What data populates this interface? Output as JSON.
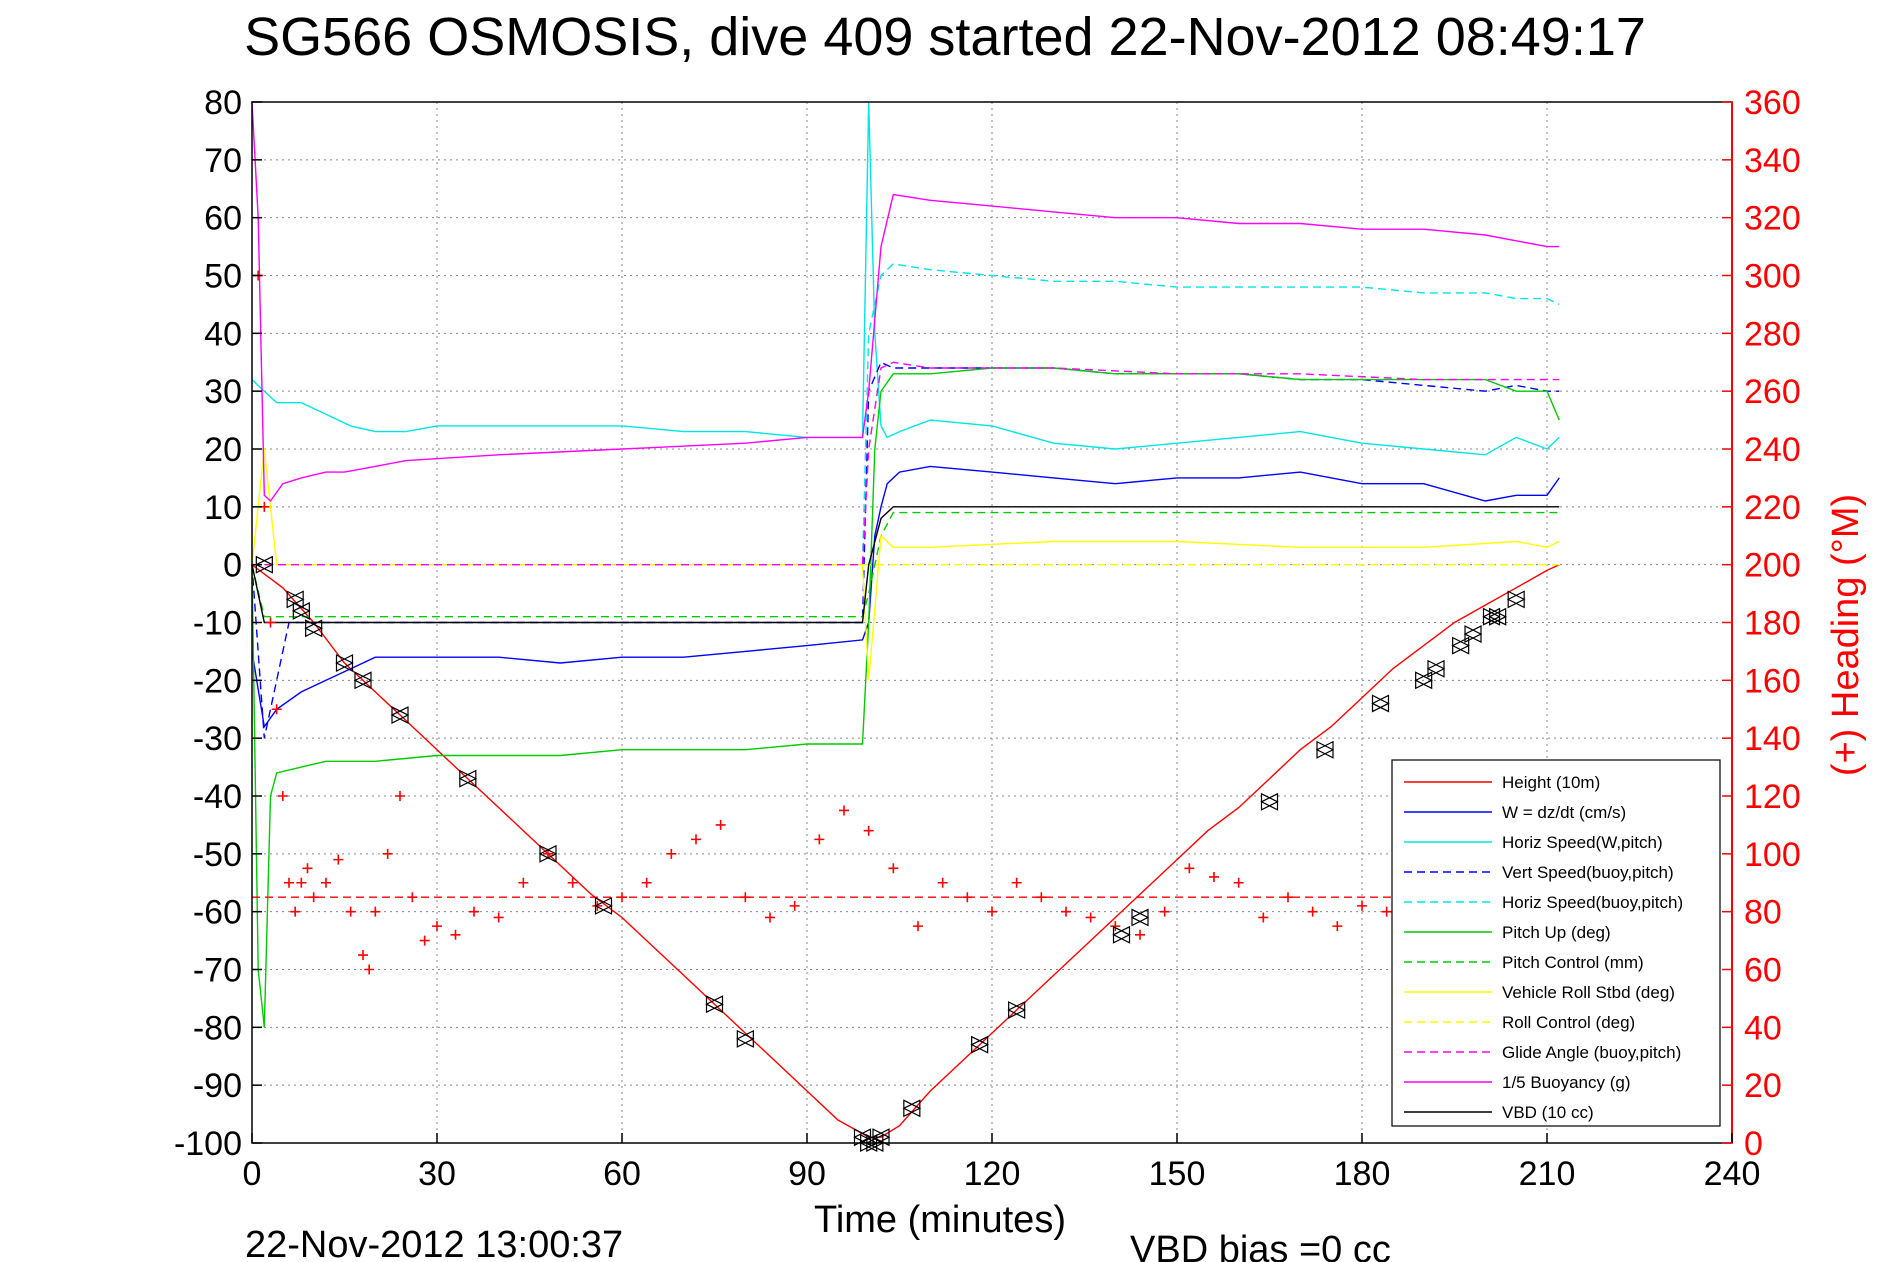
{
  "title": "SG566 OSMOSIS, dive 409 started 22-Nov-2012 08:49:17",
  "footer": {
    "timestamp": "22-Nov-2012 13:00:37",
    "vbd_bias": "VBD bias =0 cc"
  },
  "chart_data": {
    "type": "line",
    "xlabel": "Time (minutes)",
    "ylabel_right": "(+) Heading (°M)",
    "xlim": [
      0,
      240
    ],
    "ylim": [
      -100,
      80
    ],
    "ylim_right": [
      0,
      360
    ],
    "xticks": [
      0,
      30,
      60,
      90,
      120,
      150,
      180,
      210,
      240
    ],
    "yticks": [
      80,
      70,
      60,
      50,
      40,
      30,
      20,
      10,
      0,
      -10,
      -20,
      -30,
      -40,
      -50,
      -60,
      -70,
      -80,
      -90,
      -100
    ],
    "yticks_right": [
      360,
      340,
      320,
      300,
      280,
      260,
      240,
      220,
      200,
      180,
      160,
      140,
      120,
      100,
      80,
      60,
      40,
      20,
      0
    ],
    "grid": true,
    "legend_position": "bottom-right",
    "legend": [
      {
        "label": "Height (10m)",
        "color": "#ff0000",
        "dash": "solid"
      },
      {
        "label": "W = dz/dt (cm/s)",
        "color": "#0000ff",
        "dash": "solid"
      },
      {
        "label": "Horiz Speed(W,pitch)",
        "color": "#00e5e5",
        "dash": "solid"
      },
      {
        "label": "Vert Speed(buoy,pitch)",
        "color": "#0000ff",
        "dash": "dashed"
      },
      {
        "label": "Horiz Speed(buoy,pitch)",
        "color": "#00e5e5",
        "dash": "dashed"
      },
      {
        "label": "Pitch Up (deg)",
        "color": "#00cc00",
        "dash": "solid"
      },
      {
        "label": "Pitch Control (mm)",
        "color": "#00cc00",
        "dash": "dashed"
      },
      {
        "label": "Vehicle Roll Stbd (deg)",
        "color": "#ffff00",
        "dash": "solid"
      },
      {
        "label": "Roll Control (deg)",
        "color": "#ffff00",
        "dash": "dashed"
      },
      {
        "label": "Glide Angle (buoy,pitch)",
        "color": "#ff00ff",
        "dash": "dashed"
      },
      {
        "label": "1/5 Buoyancy (g)",
        "color": "#ff00ff",
        "dash": "solid"
      },
      {
        "label": "VBD (10 cc)",
        "color": "#000000",
        "dash": "solid"
      }
    ],
    "series": [
      {
        "name": "Height (10m)",
        "color": "#ff0000",
        "dash": "solid",
        "x": [
          0,
          5,
          10,
          15,
          20,
          25,
          30,
          35,
          40,
          45,
          50,
          55,
          60,
          65,
          70,
          75,
          80,
          85,
          90,
          95,
          100,
          102,
          105,
          110,
          115,
          120,
          125,
          130,
          135,
          140,
          145,
          150,
          155,
          160,
          165,
          170,
          175,
          180,
          185,
          190,
          195,
          200,
          205,
          210,
          212
        ],
        "y": [
          0,
          -4,
          -10,
          -17,
          -22,
          -27,
          -32,
          -37,
          -42,
          -47,
          -52,
          -57,
          -61,
          -66,
          -71,
          -76,
          -81,
          -86,
          -91,
          -96,
          -99,
          -99,
          -97,
          -91,
          -86,
          -81,
          -76,
          -71,
          -66,
          -61,
          -56,
          -51,
          -46,
          -42,
          -37,
          -32,
          -28,
          -23,
          -18,
          -14,
          -10,
          -7,
          -4,
          -1,
          0
        ]
      },
      {
        "name": "W = dz/dt (cm/s)",
        "color": "#0000ff",
        "dash": "solid",
        "x": [
          0,
          2,
          4,
          8,
          12,
          16,
          20,
          25,
          30,
          40,
          50,
          60,
          70,
          80,
          90,
          99,
          100,
          101,
          102,
          103,
          105,
          110,
          120,
          130,
          140,
          150,
          160,
          170,
          180,
          190,
          200,
          205,
          210,
          212
        ],
        "y": [
          -15,
          -28,
          -25,
          -22,
          -20,
          -18,
          -16,
          -16,
          -16,
          -16,
          -17,
          -16,
          -16,
          -15,
          -14,
          -13,
          -10,
          5,
          10,
          14,
          16,
          17,
          16,
          15,
          14,
          15,
          15,
          16,
          14,
          14,
          11,
          12,
          12,
          15
        ]
      },
      {
        "name": "Horiz Speed(W,pitch)",
        "color": "#00e5e5",
        "dash": "solid",
        "x": [
          0,
          2,
          4,
          8,
          12,
          16,
          20,
          25,
          30,
          40,
          50,
          60,
          70,
          80,
          90,
          99,
          100,
          101,
          102,
          103,
          105,
          110,
          120,
          130,
          140,
          150,
          160,
          170,
          180,
          190,
          200,
          205,
          210,
          212
        ],
        "y": [
          32,
          30,
          28,
          28,
          26,
          24,
          23,
          23,
          24,
          24,
          24,
          24,
          23,
          23,
          22,
          22,
          80,
          40,
          24,
          22,
          23,
          25,
          24,
          21,
          20,
          21,
          22,
          23,
          21,
          20,
          19,
          22,
          20,
          22
        ]
      },
      {
        "name": "Vert Speed(buoy,pitch)",
        "color": "#0000ff",
        "dash": "dashed",
        "x": [
          0,
          2,
          6,
          99,
          100,
          102,
          104,
          110,
          120,
          130,
          140,
          150,
          160,
          170,
          180,
          190,
          200,
          205,
          210,
          212
        ],
        "y": [
          0,
          -30,
          -10,
          -10,
          30,
          35,
          34,
          34,
          34,
          34,
          33,
          33,
          33,
          32,
          32,
          31,
          30,
          31,
          30,
          30
        ]
      },
      {
        "name": "Horiz Speed(buoy,pitch)",
        "color": "#00e5e5",
        "dash": "dashed",
        "x": [
          0,
          99,
          100,
          102,
          104,
          110,
          120,
          130,
          140,
          150,
          160,
          170,
          180,
          190,
          200,
          205,
          210,
          212
        ],
        "y": [
          0,
          0,
          40,
          50,
          52,
          51,
          50,
          49,
          49,
          48,
          48,
          48,
          48,
          47,
          47,
          46,
          46,
          45
        ]
      },
      {
        "name": "Pitch Up (deg)",
        "color": "#00cc00",
        "dash": "solid",
        "x": [
          0,
          1,
          2,
          3,
          4,
          8,
          12,
          20,
          30,
          40,
          50,
          60,
          70,
          80,
          90,
          99,
          100,
          101,
          102,
          104,
          110,
          120,
          130,
          140,
          150,
          160,
          170,
          180,
          190,
          200,
          205,
          210,
          212
        ],
        "y": [
          0,
          -70,
          -80,
          -40,
          -36,
          -35,
          -34,
          -34,
          -33,
          -33,
          -33,
          -32,
          -32,
          -32,
          -31,
          -31,
          -10,
          20,
          30,
          33,
          33,
          34,
          34,
          33,
          33,
          33,
          32,
          32,
          32,
          32,
          30,
          30,
          25
        ]
      },
      {
        "name": "Pitch Control (mm)",
        "color": "#00cc00",
        "dash": "dashed",
        "x": [
          0,
          2,
          4,
          99,
          100,
          102,
          104,
          212
        ],
        "y": [
          0,
          -9,
          -9,
          -9,
          -5,
          5,
          9,
          9
        ]
      },
      {
        "name": "Vehicle Roll Stbd (deg)",
        "color": "#ffff00",
        "dash": "solid",
        "x": [
          0,
          2,
          4,
          8,
          20,
          40,
          60,
          80,
          99,
          100,
          102,
          104,
          110,
          130,
          150,
          170,
          190,
          205,
          210,
          212
        ],
        "y": [
          0,
          20,
          0,
          0,
          0,
          0,
          0,
          0,
          0,
          -20,
          5,
          3,
          3,
          4,
          4,
          3,
          3,
          4,
          3,
          4
        ]
      },
      {
        "name": "Roll Control (deg)",
        "color": "#ffff00",
        "dash": "dashed",
        "x": [
          0,
          100,
          101,
          212
        ],
        "y": [
          0,
          0,
          0,
          0
        ]
      },
      {
        "name": "Glide Angle (buoy,pitch)",
        "color": "#ff00ff",
        "dash": "dashed",
        "x": [
          0,
          2,
          99,
          100,
          102,
          104,
          110,
          130,
          150,
          170,
          190,
          210,
          212
        ],
        "y": [
          0,
          0,
          0,
          20,
          34,
          35,
          34,
          34,
          33,
          33,
          32,
          32,
          32
        ]
      },
      {
        "name": "1/5 Buoyancy (g)",
        "color": "#ff00ff",
        "dash": "solid",
        "x": [
          0,
          1,
          2,
          3,
          5,
          8,
          12,
          15,
          20,
          25,
          40,
          60,
          80,
          90,
          99,
          100,
          102,
          104,
          110,
          120,
          130,
          140,
          150,
          160,
          170,
          180,
          190,
          200,
          205,
          210,
          212
        ],
        "y": [
          80,
          60,
          12,
          11,
          14,
          15,
          16,
          16,
          17,
          18,
          19,
          20,
          21,
          22,
          22,
          30,
          55,
          64,
          63,
          62,
          61,
          60,
          60,
          59,
          59,
          58,
          58,
          57,
          56,
          55,
          55
        ]
      },
      {
        "name": "VBD (10 cc)",
        "color": "#000000",
        "dash": "solid",
        "x": [
          0,
          2,
          4,
          99,
          100,
          102,
          104,
          212
        ],
        "y": [
          0,
          -10,
          -10,
          -10,
          0,
          8,
          10,
          10
        ]
      },
      {
        "name": "Heading",
        "color": "#ff0000",
        "type": "scatter",
        "axis": "right",
        "x": [
          1,
          2,
          3,
          4,
          5,
          6,
          7,
          8,
          9,
          10,
          12,
          14,
          16,
          18,
          19,
          20,
          22,
          24,
          26,
          28,
          30,
          33,
          36,
          40,
          44,
          48,
          52,
          56,
          60,
          64,
          68,
          72,
          76,
          80,
          84,
          88,
          92,
          96,
          100,
          104,
          108,
          112,
          116,
          120,
          124,
          128,
          132,
          136,
          140,
          144,
          148,
          152,
          156,
          160,
          164,
          168,
          172,
          176,
          180,
          184,
          188
        ],
        "y": [
          300,
          220,
          180,
          150,
          120,
          90,
          80,
          90,
          95,
          85,
          90,
          98,
          80,
          65,
          60,
          80,
          100,
          120,
          85,
          70,
          75,
          72,
          80,
          78,
          90,
          100,
          90,
          82,
          85,
          90,
          100,
          105,
          110,
          85,
          78,
          82,
          105,
          115,
          108,
          95,
          75,
          90,
          85,
          80,
          90,
          85,
          80,
          78,
          75,
          72,
          80,
          95,
          92,
          90,
          78,
          85,
          80,
          75,
          82,
          80,
          78
        ]
      },
      {
        "name": "Mean heading",
        "color": "#ff0000",
        "dash": "dashed",
        "axis": "right",
        "x": [
          0,
          212
        ],
        "y": [
          85,
          85
        ]
      }
    ],
    "markers": {
      "label": "Height samples (triangles)",
      "x": [
        2,
        7,
        8,
        10,
        15,
        18,
        24,
        35,
        48,
        57,
        75,
        80,
        99,
        100,
        101,
        102,
        107,
        118,
        124,
        141,
        144,
        165,
        174,
        183,
        190,
        192,
        196,
        198,
        201,
        202,
        205
      ],
      "y": [
        0,
        -6,
        -8,
        -11,
        -17,
        -20,
        -26,
        -37,
        -50,
        -59,
        -76,
        -82,
        -99,
        -100,
        -100,
        -99,
        -94,
        -83,
        -77,
        -64,
        -61,
        -41,
        -32,
        -24,
        -20,
        -18,
        -14,
        -12,
        -9,
        -9,
        -6
      ]
    }
  }
}
